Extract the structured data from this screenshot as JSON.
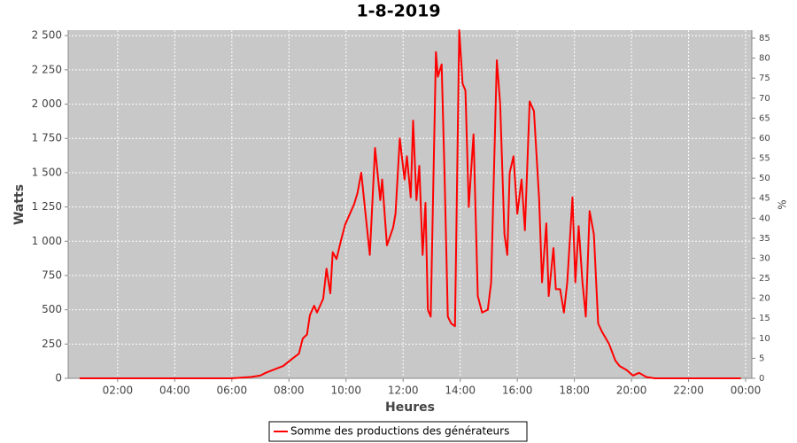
{
  "chart_data": {
    "type": "line",
    "title": "1-8-2019",
    "xlabel": "Heures",
    "ylabel": "Watts",
    "y2label": "%",
    "x": [
      40,
      120,
      240,
      360,
      400,
      420,
      431,
      468,
      486,
      501,
      509,
      518,
      524,
      533,
      539,
      552,
      559,
      567,
      572,
      580,
      589,
      598,
      617,
      624,
      632,
      650,
      661,
      672,
      676,
      686,
      699,
      704,
      713,
      723,
      728,
      736,
      741,
      748,
      754,
      761,
      767,
      772,
      778,
      789,
      793,
      801,
      807,
      814,
      821,
      829,
      838,
      845,
      851,
      858,
      868,
      877,
      886,
      898,
      905,
      917,
      924,
      933,
      939,
      944,
      952,
      960,
      969,
      976,
      986,
      995,
      1006,
      1012,
      1021,
      1026,
      1036,
      1041,
      1050,
      1058,
      1065,
      1076,
      1082,
      1089,
      1097,
      1104,
      1112,
      1121,
      1130,
      1138,
      1153,
      1166,
      1175,
      1190,
      1203,
      1216,
      1231,
      1249,
      1320,
      1430
    ],
    "series": [
      {
        "name": "Somme des productions des  générateurs",
        "color": "#ff0000",
        "values": [
          0,
          0,
          0,
          0,
          10,
          20,
          40,
          90,
          140,
          180,
          290,
          320,
          460,
          530,
          480,
          580,
          800,
          620,
          920,
          870,
          1000,
          1120,
          1270,
          1350,
          1500,
          900,
          1680,
          1300,
          1450,
          970,
          1100,
          1200,
          1750,
          1450,
          1620,
          1320,
          1880,
          1300,
          1550,
          900,
          1280,
          500,
          450,
          2380,
          2200,
          2290,
          1500,
          450,
          400,
          380,
          2540,
          2150,
          2100,
          1250,
          1780,
          600,
          480,
          500,
          700,
          2320,
          2000,
          1050,
          900,
          1500,
          1620,
          1200,
          1450,
          1080,
          2020,
          1950,
          1300,
          700,
          1130,
          600,
          950,
          650,
          650,
          480,
          700,
          1320,
          700,
          1110,
          700,
          450,
          1220,
          1050,
          400,
          340,
          250,
          130,
          90,
          60,
          20,
          40,
          10,
          0,
          0,
          0
        ]
      }
    ],
    "xlim": [
      16,
      1453
    ],
    "xticks": [
      {
        "value": 120,
        "label": "02:00"
      },
      {
        "value": 240,
        "label": "04:00"
      },
      {
        "value": 360,
        "label": "06:00"
      },
      {
        "value": 480,
        "label": "08:00"
      },
      {
        "value": 600,
        "label": "10:00"
      },
      {
        "value": 720,
        "label": "12:00"
      },
      {
        "value": 840,
        "label": "14:00"
      },
      {
        "value": 960,
        "label": "16:00"
      },
      {
        "value": 1080,
        "label": "18:00"
      },
      {
        "value": 1200,
        "label": "20:00"
      },
      {
        "value": 1320,
        "label": "22:00"
      },
      {
        "value": 1440,
        "label": "00:00"
      }
    ],
    "ylim": [
      0,
      2540
    ],
    "yticks": [
      0,
      250,
      500,
      750,
      {
        "value": 1000,
        "label": "1 000"
      },
      {
        "value": 1250,
        "label": "1 250"
      },
      {
        "value": 1500,
        "label": "1 500"
      },
      {
        "value": 1750,
        "label": "1 750"
      },
      {
        "value": 2000,
        "label": "2 000"
      },
      {
        "value": 2250,
        "label": "2 250"
      },
      {
        "value": 2500,
        "label": "2 500"
      }
    ],
    "y2lim": [
      0,
      87
    ],
    "y2ticks": [
      0,
      5,
      10,
      15,
      20,
      25,
      30,
      35,
      40,
      45,
      50,
      55,
      60,
      65,
      70,
      75,
      80,
      85
    ],
    "grid": true
  }
}
